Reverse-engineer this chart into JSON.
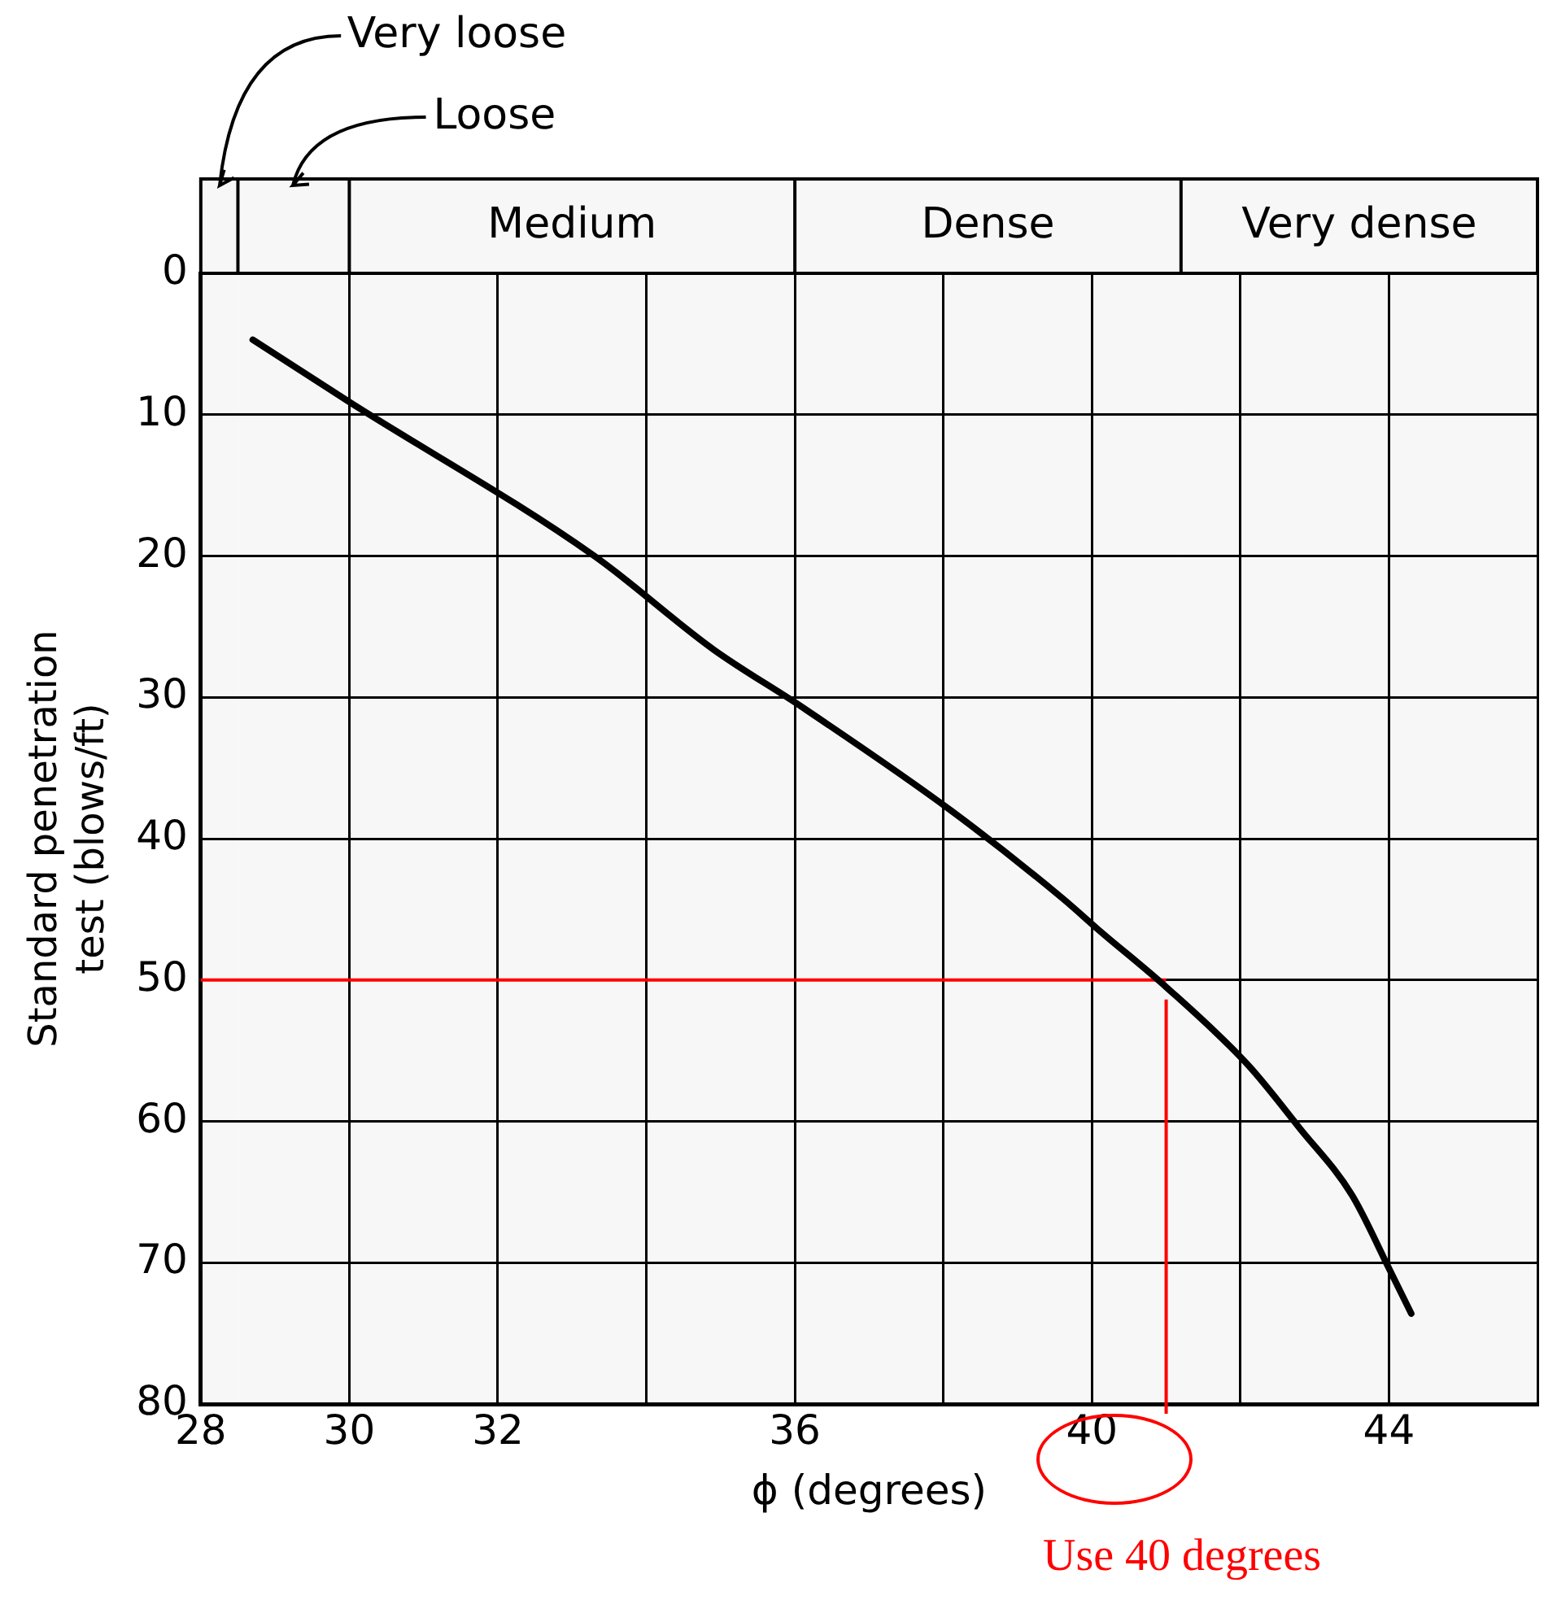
{
  "chart_data": {
    "type": "line",
    "xlabel": "ϕ (degrees)",
    "ylabel": "Standard penetration test (blows/ft)",
    "xlim": [
      28,
      46
    ],
    "ylim": [
      80,
      0
    ],
    "xticks": [
      28,
      30,
      32,
      {
        "value": 34,
        "label": null
      },
      36,
      {
        "value": 38,
        "label": null
      },
      40,
      {
        "value": 42,
        "label": null
      },
      44,
      {
        "value": 46,
        "label": null
      }
    ],
    "yticks": [
      0,
      10,
      20,
      30,
      40,
      50,
      60,
      70,
      80
    ],
    "grid": true,
    "legend": false,
    "marker": "none",
    "line_style": "solid",
    "series": [
      {
        "color": "#000000",
        "x": [
          28.7,
          30,
          33.3,
          34.9,
          36.1,
          38.1,
          39.6,
          40.1,
          41.0,
          42.1,
          42.8,
          43.5,
          44.0,
          44.3
        ],
        "values": [
          4.7,
          9.1,
          20,
          26.6,
          30.7,
          38,
          44.2,
          46.5,
          50.5,
          56,
          60.5,
          65.2,
          70.4,
          73.6
        ]
      }
    ],
    "bands": [
      {
        "axis": "x",
        "from": 28,
        "to": 28.5,
        "label": "Very loose",
        "color": "#f7f7f7"
      },
      {
        "axis": "x",
        "from": 28.5,
        "to": 30,
        "label": "Loose",
        "color": "#f7f7f7"
      },
      {
        "axis": "x",
        "from": 30,
        "to": 36,
        "label": "Medium",
        "color": "#f7f7f7"
      },
      {
        "axis": "x",
        "from": 36,
        "to": 41.2,
        "label": "Dense",
        "color": "#f7f7f7"
      },
      {
        "axis": "x",
        "from": 41.2,
        "to": 46,
        "label": "Very dense",
        "color": "#f7f7f7"
      }
    ],
    "ref_lines": [
      {
        "axis": "y",
        "value": 50,
        "color": "#ff0000"
      },
      {
        "axis": "x",
        "value": 41,
        "color": "#ff0000"
      }
    ],
    "annotations": [
      "Use 40 degrees"
    ]
  }
}
